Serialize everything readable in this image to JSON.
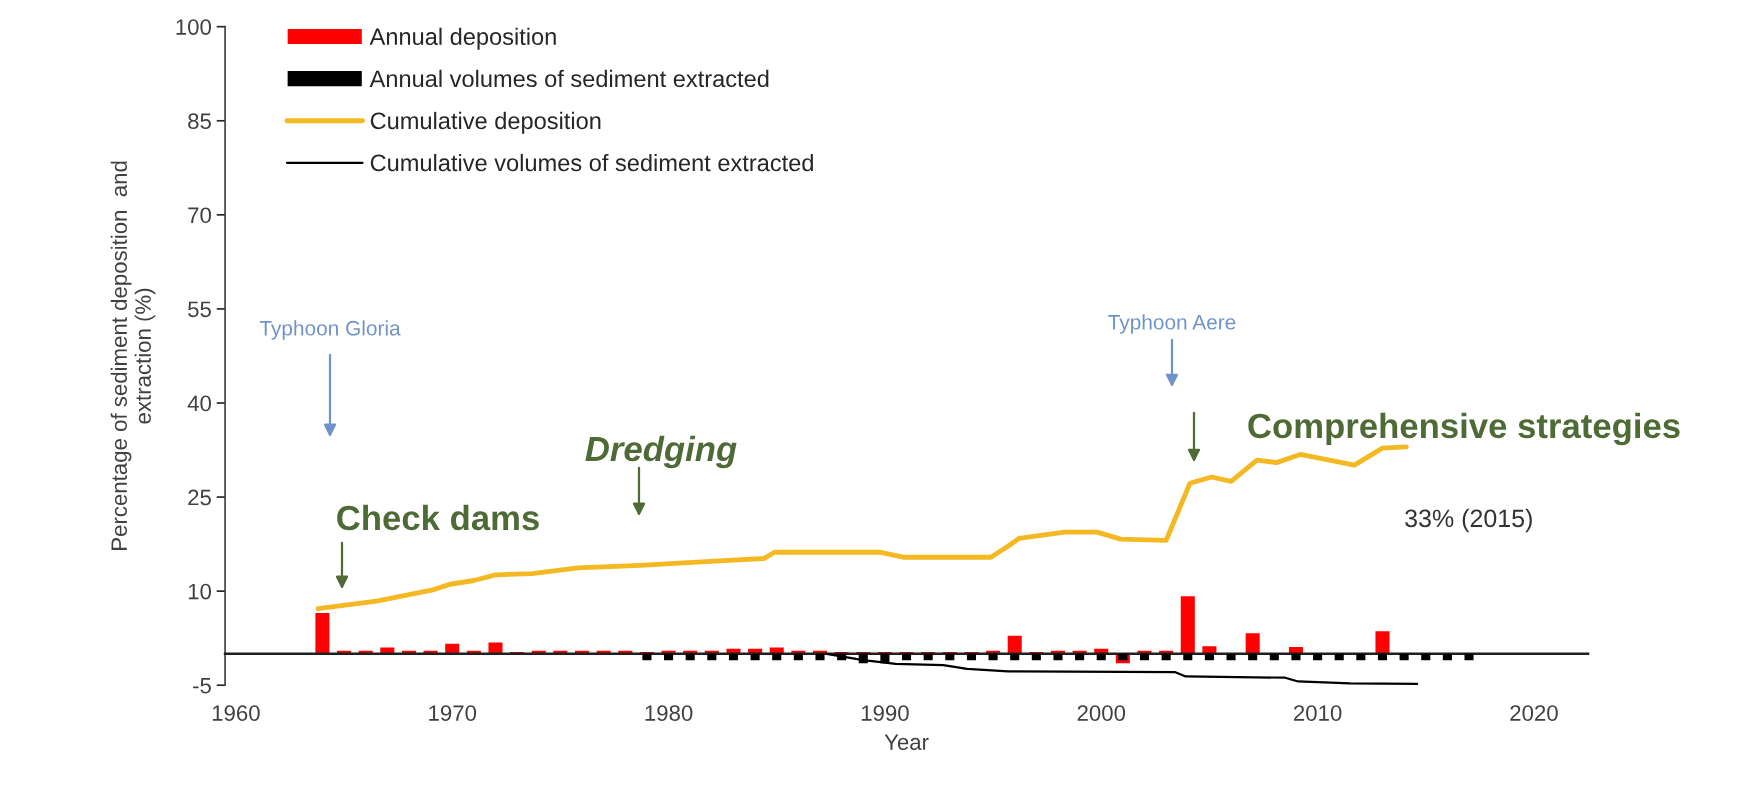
{
  "chart_data": {
    "type": "bar",
    "xlabel": "Year",
    "ylabel": "Percentage of sediment deposition  and\nextraction (%)",
    "xlim": [
      1959.5,
      2022.5
    ],
    "xticks": [
      1960,
      1970,
      1980,
      1990,
      2000,
      2010,
      2020
    ],
    "ylim": [
      -5,
      100
    ],
    "yticks": [
      -5,
      10,
      25,
      40,
      55,
      70,
      85,
      100
    ],
    "legend": "top left",
    "grid": false,
    "series": [
      {
        "name": "Annual deposition",
        "color": "#ff0000",
        "x": [
          1964,
          1965,
          1966,
          1967,
          1968,
          1969,
          1970,
          1971,
          1972,
          1973,
          1974,
          1975,
          1976,
          1977,
          1978,
          1979,
          1980,
          1981,
          1982,
          1983,
          1984,
          1985,
          1986,
          1987,
          1988,
          1989,
          1990,
          1991,
          1992,
          1993,
          1994,
          1995,
          1996,
          1997,
          1998,
          1999,
          2000,
          2001,
          2002,
          2003,
          2004,
          2005,
          2006,
          2007,
          2008,
          2009,
          2010,
          2011,
          2012,
          2013
        ],
        "values": [
          6.5,
          0.5,
          0.5,
          1,
          0.5,
          0.5,
          1.6,
          0.5,
          1.8,
          0.3,
          0.5,
          0.5,
          0.5,
          0.5,
          0.5,
          0.3,
          0.5,
          0.5,
          0.5,
          0.8,
          0.8,
          1,
          0.5,
          0.5,
          0.3,
          0.3,
          0.3,
          0.3,
          0.3,
          0.3,
          0.3,
          0.5,
          2.9,
          0.3,
          0.5,
          0.5,
          0.8,
          -1.5,
          0.5,
          0.5,
          9.2,
          1.2,
          null,
          3.3,
          null,
          1.1,
          null,
          null,
          null,
          3.6
        ]
      },
      {
        "name": "Annual volumes of sediment extracted",
        "color": "#000000",
        "x": [
          1979,
          1980,
          1981,
          1982,
          1983,
          1984,
          1985,
          1986,
          1987,
          1988,
          1989,
          1990,
          1991,
          1992,
          1993,
          1994,
          1995,
          1996,
          1997,
          1998,
          1999,
          2000,
          2001,
          2002,
          2003,
          2004,
          2005,
          2006,
          2007,
          2008,
          2009,
          2010,
          2011,
          2012,
          2013,
          2014,
          2015,
          2016,
          2017
        ],
        "values": [
          -1,
          -1,
          -1,
          -1,
          -1,
          -1,
          -1,
          -1,
          -1,
          -1,
          -1.5,
          -1.5,
          -1,
          -1,
          -1,
          -1,
          -1,
          -1,
          -1,
          -1,
          -1,
          -1,
          -1,
          -1,
          -1,
          -1,
          -1,
          -1,
          -1,
          -1,
          -1,
          -1,
          -1,
          -1,
          -1,
          -1,
          -1,
          -1,
          -1
        ]
      },
      {
        "type": "line",
        "name": "Cumulative deposition",
        "color": "#f4b823",
        "x": [
          1963.8,
          1966.5,
          1969.1,
          1969.9,
          1971.0,
          1972.0,
          1973.7,
          1975.8,
          1978.7,
          1981.7,
          1984.4,
          1984.9,
          1989.8,
          1990.9,
          1994.9,
          1995.7,
          1996.2,
          1998.3,
          1999.8,
          2000.9,
          2003.0,
          2004.1,
          2005.1,
          2006.0,
          2007.2,
          2008.1,
          2009.2,
          2011.7,
          2013.0,
          2014.1
        ],
        "values": [
          7.2,
          8.4,
          10.2,
          11.1,
          11.7,
          12.6,
          12.8,
          13.7,
          14.1,
          14.7,
          15.2,
          16.2,
          16.2,
          15.4,
          15.4,
          17.2,
          18.4,
          19.4,
          19.4,
          18.3,
          18.1,
          27.2,
          28.2,
          27.5,
          30.9,
          30.5,
          31.8,
          30.1,
          32.8,
          33
        ]
      },
      {
        "type": "line",
        "name": "Cumulative volumes of sediment extracted",
        "color": "#000000",
        "x": [
          1987.3,
          1989.0,
          1990.5,
          1992.7,
          1993.8,
          1995.7,
          2003.4,
          2003.9,
          2008.5,
          2009.1,
          2011.5,
          2014.6
        ],
        "values": [
          0,
          -1.0,
          -1.6,
          -1.8,
          -2.4,
          -2.8,
          -2.9,
          -3.6,
          -3.8,
          -4.4,
          -4.7,
          -4.8
        ]
      }
    ],
    "annotations": [
      "Typhoon Gloria",
      "Check dams",
      "Dredging",
      "Typhoon Aere",
      "Comprehensive strategies",
      {
        "text": "33% (2015)",
        "x": 2014.1,
        "y": 33
      }
    ]
  }
}
